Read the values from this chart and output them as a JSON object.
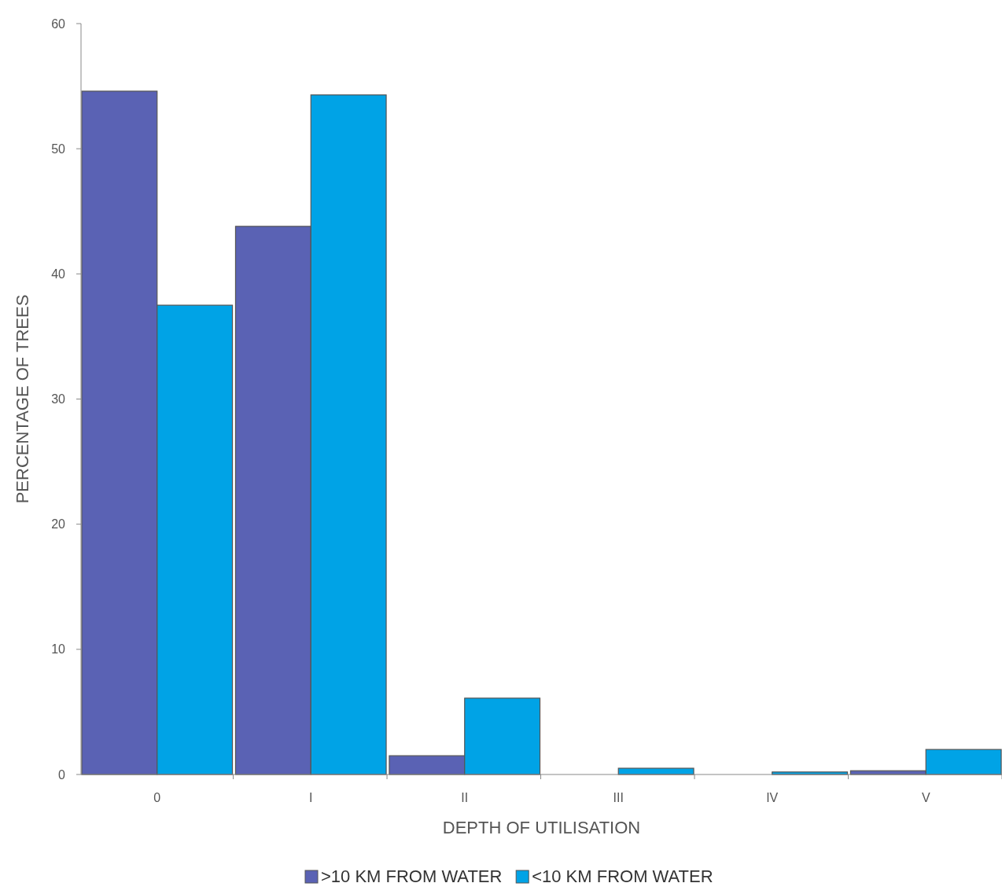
{
  "chart_data": {
    "type": "bar",
    "xlabel": "DEPTH OF UTILISATION",
    "ylabel": "PERCENTAGE OF TREES",
    "categories": [
      "0",
      "I",
      "II",
      "III",
      "IV",
      "V"
    ],
    "series": [
      {
        "name": ">10 KM FROM WATER",
        "color": "#5a62b4",
        "values": [
          54.6,
          43.8,
          1.5,
          0,
          0,
          0.3
        ]
      },
      {
        "name": "<10 KM FROM WATER",
        "color": "#00a3e6",
        "values": [
          37.5,
          54.3,
          6.1,
          0.5,
          0.2,
          2.0
        ]
      }
    ],
    "ylim": [
      0,
      60
    ],
    "yticks": [
      0,
      10,
      20,
      30,
      40,
      50,
      60
    ],
    "legend": "bottom"
  }
}
